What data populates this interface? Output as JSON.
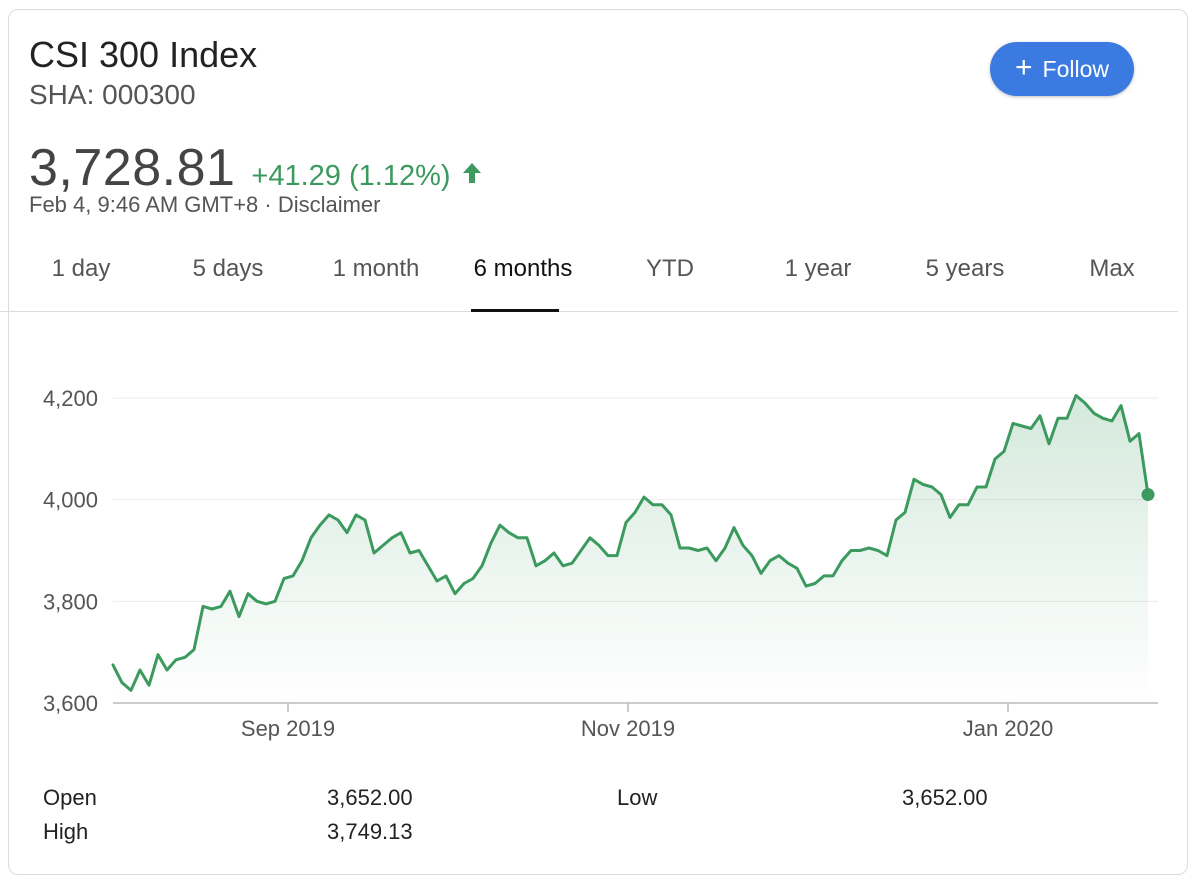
{
  "header": {
    "title": "CSI 300 Index",
    "ticker": "SHA: 000300",
    "price": "3,728.81",
    "change": "+41.29 (1.12%)",
    "timestamp": "Feb 4, 9:46 AM GMT+8 · Disclaimer",
    "follow_label": "Follow"
  },
  "tabs": [
    {
      "label": "1 day"
    },
    {
      "label": "5 days"
    },
    {
      "label": "1 month"
    },
    {
      "label": "6 months"
    },
    {
      "label": "YTD"
    },
    {
      "label": "1 year"
    },
    {
      "label": "5 years"
    },
    {
      "label": "Max"
    }
  ],
  "active_tab": "6 months",
  "colors": {
    "line": "#3c9a5f",
    "up": "#3c9a5f",
    "accent": "#3b7ae0"
  },
  "chart_data": {
    "type": "area",
    "title": "",
    "xlabel": "",
    "ylabel": "",
    "ylim": [
      3600,
      4200
    ],
    "yticks": [
      3600,
      3800,
      4000,
      4200
    ],
    "ytick_labels": [
      "3,600",
      "3,800",
      "4,000",
      "4,200"
    ],
    "xtick_labels": [
      "Sep 2019",
      "Nov 2019",
      "Jan 2020"
    ],
    "grid": true,
    "series": [
      {
        "values": [
          3675,
          3640,
          3625,
          3665,
          3635,
          3695,
          3665,
          3685,
          3690,
          3705,
          3790,
          3785,
          3790,
          3820,
          3770,
          3815,
          3800,
          3795,
          3800,
          3845,
          3850,
          3880,
          3925,
          3950,
          3970,
          3960,
          3935,
          3970,
          3960,
          3895,
          3910,
          3925,
          3935,
          3895,
          3900,
          3870,
          3840,
          3850,
          3815,
          3835,
          3845,
          3870,
          3915,
          3950,
          3935,
          3925,
          3925,
          3870,
          3880,
          3895,
          3870,
          3875,
          3900,
          3925,
          3910,
          3890,
          3890,
          3955,
          3975,
          4005,
          3990,
          3990,
          3970,
          3905,
          3905,
          3900,
          3905,
          3880,
          3905,
          3945,
          3910,
          3890,
          3855,
          3880,
          3890,
          3875,
          3865,
          3830,
          3835,
          3850,
          3850,
          3880,
          3900,
          3900,
          3905,
          3900,
          3890,
          3960,
          3975,
          4040,
          4030,
          4025,
          4010,
          3965,
          3990,
          3990,
          4025,
          4025,
          4080,
          4095,
          4150,
          4145,
          4140,
          4165,
          4110,
          4160,
          4160,
          4205,
          4190,
          4170,
          4160,
          4155,
          4185,
          4115,
          4130,
          4010
        ]
      }
    ]
  },
  "stats": {
    "open_label": "Open",
    "open_value": "3,652.00",
    "high_label": "High",
    "high_value": "3,749.13",
    "low_label": "Low",
    "low_value": "3,652.00"
  }
}
